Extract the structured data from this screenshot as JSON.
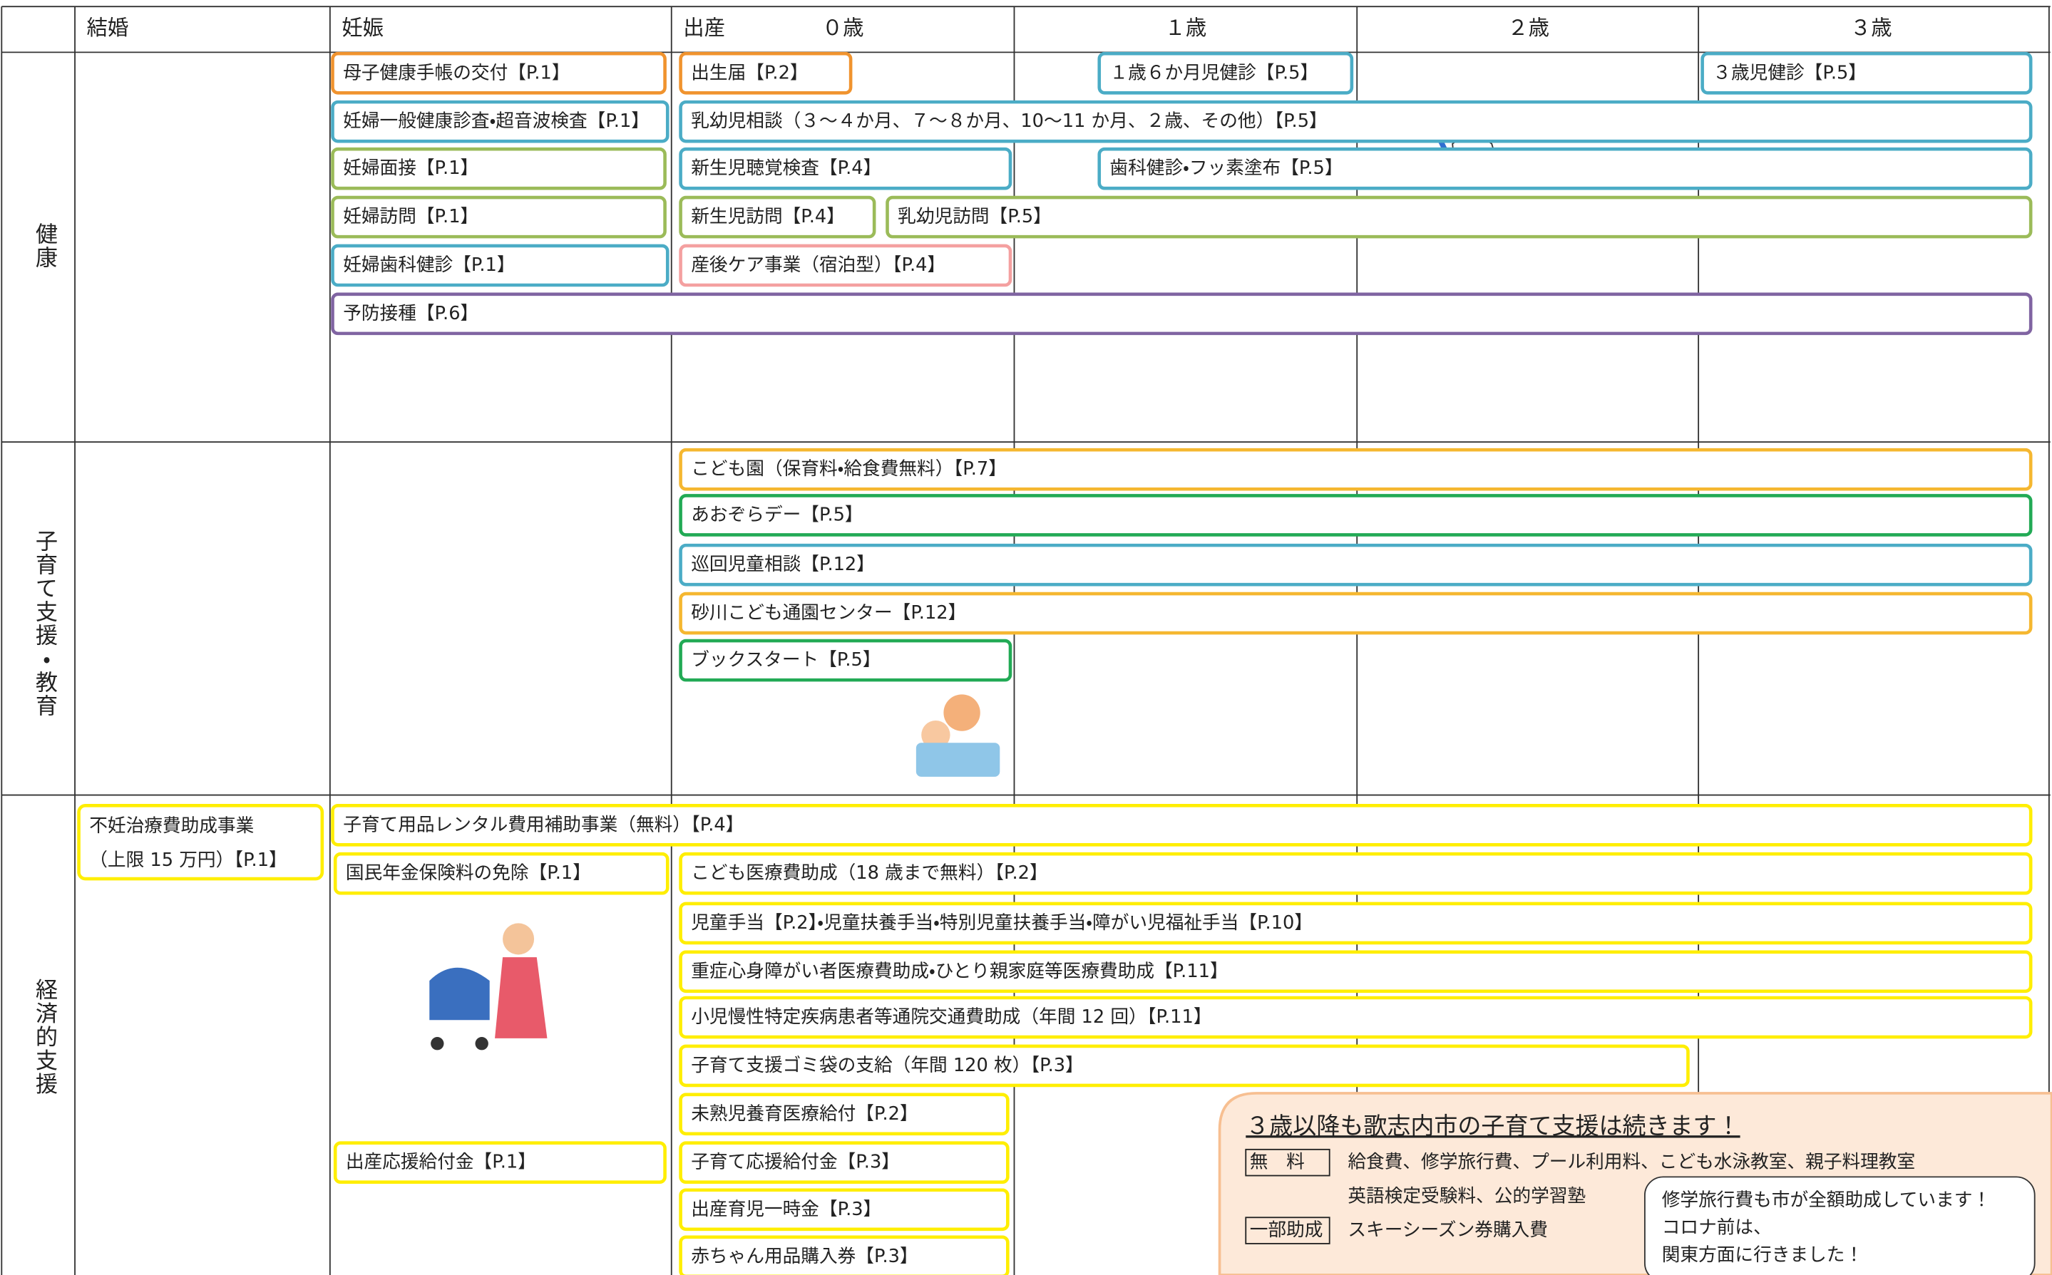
{
  "columns": [
    "結婚",
    "妊娠",
    "出産",
    "０歳",
    "１歳",
    "２歳",
    "３歳"
  ],
  "rows": [
    "健康",
    "子育て支援・教育",
    "経済的支援"
  ],
  "health": [
    "母子健康手帳の交付【P.1】",
    "出生届【P.2】",
    "１歳６か月児健診【P.5】",
    "３歳児健診【P.5】",
    "妊婦一般健康診査・超音波検査【P.1】",
    "乳幼児相談（３～４か月、７～８か月、10～11 か月、２歳、その他）【P.5】",
    "妊婦面接【P.1】",
    "新生児聴覚検査【P.4】",
    "歯科健診・フッ素塗布【P.5】",
    "妊婦訪問【P.1】",
    "新生児訪問【P.4】",
    "乳幼児訪問【P.5】",
    "妊婦歯科健診【P.1】",
    "産後ケア事業（宿泊型）【P.4】",
    "予防接種【P.6】"
  ],
  "childcare": [
    "こども園（保育料・給食費無料）【P.7】",
    "あおぞらデー【P.5】",
    "巡回児童相談【P.12】",
    "砂川こども通園センター【P.12】",
    "ブックスタート【P.5】"
  ],
  "economic": [
    "不妊治療費助成事業",
    "（上限 15 万円）【P.1】",
    "子育て用品レンタル費用補助事業（無料）【P.4】",
    "国民年金保険料の免除【P.1】",
    "こども医療費助成（18 歳まで無料）【P.2】",
    "児童手当【P.2】・児童扶養手当・特別児童扶養手当・障がい児福祉手当【P.10】",
    "重症心身障がい者医療費助成・ひとり親家庭等医療費助成【P.11】",
    "小児慢性特定疾病患者等通院交通費助成（年間 12 回）【P.11】",
    "子育て支援ゴミ袋の支給（年間 120 枚）【P.3】",
    "未熟児養育医療給付【P.2】",
    "出産応援給付金【P.1】",
    "子育て応援給付金【P.3】",
    "出産育児一時金【P.3】",
    "赤ちゃん用品購入券【P.3】"
  ],
  "note": {
    "title": "３歳以降も歌志内市の子育て支援は続きます！",
    "free_label": "無　料",
    "free_items": "給食費、修学旅行費、プール利用料、こども水泳教室、親子料理教室",
    "free_items_2": "英語検定受験料、公的学習塾",
    "partial_label": "一部助成",
    "partial_items": "スキーシーズン券購入費",
    "bubble": [
      "修学旅行費も市が全額助成しています！",
      "コロナ前は、",
      "関東方面に行きました！"
    ]
  }
}
